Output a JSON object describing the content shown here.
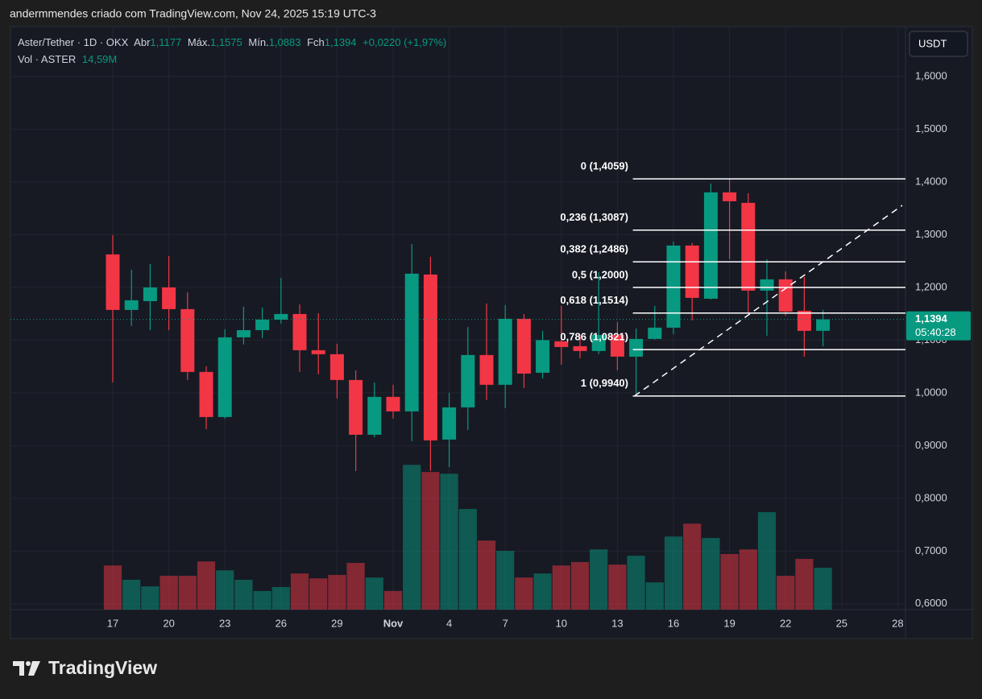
{
  "chart_data": {
    "type": "candlestick",
    "attribution": "andermmendes criado com TradingView.com, Nov 24, 2025 15:19 UTC-3",
    "brand": "TradingView",
    "currency": "USDT",
    "legend_header": {
      "title": "Aster/Tether · 1D · OKX",
      "open_label": "Abr",
      "open": "1,1177",
      "high_label": "Máx.",
      "high": "1,1575",
      "low_label": "Mín.",
      "low": "1,0883",
      "close_label": "Fch",
      "close": "1,1394",
      "change": "+0,0220 (+1,97%)",
      "volume_label": "Vol · ASTER",
      "volume": "14,59M"
    },
    "categories": [
      "17",
      null,
      null,
      "20",
      null,
      null,
      "23",
      null,
      null,
      "26",
      null,
      null,
      "29",
      null,
      null,
      "Nov",
      null,
      null,
      "4",
      null,
      null,
      "7",
      null,
      null,
      "10",
      null,
      null,
      "13",
      null,
      null,
      "16",
      null,
      null,
      "19",
      null,
      null,
      "22",
      null,
      null,
      "25",
      null,
      null,
      "28"
    ],
    "open": [
      1.2626,
      1.1573,
      1.174,
      1.2,
      1.1588,
      1.0397,
      0.9542,
      1.1053,
      1.119,
      1.1389,
      1.1496,
      1.0809,
      1.0733,
      1.0244,
      0.9206,
      0.9924,
      0.9649,
      1.2244,
      0.9115,
      0.9725,
      1.0718,
      1.0153,
      1.1405,
      1.0382,
      1.0977,
      1.0885,
      1.0794,
      1.1099,
      1.0687,
      1.1023,
      1.1237,
      1.2794,
      1.1786,
      1.3802,
      1.3603,
      1.1939,
      1.2153,
      1.1557,
      1.1177,
      null,
      null,
      null,
      null
    ],
    "high": [
      1.2992,
      1.2336,
      1.2443,
      1.2595,
      1.1908,
      1.0504,
      1.1206,
      1.1634,
      1.1618,
      1.2183,
      1.1679,
      1.1511,
      1.0931,
      1.0427,
      1.0198,
      1.0153,
      1.2824,
      1.258,
      1.0,
      1.1252,
      1.1695,
      1.1664,
      1.1496,
      1.1176,
      1.1649,
      1.1099,
      1.229,
      1.1344,
      1.1221,
      1.1649,
      1.287,
      1.284,
      1.3969,
      1.4059,
      1.3786,
      1.2534,
      1.2305,
      1.2198,
      1.1575,
      null,
      null,
      null,
      null
    ],
    "low": [
      1.0198,
      1.1267,
      1.119,
      1.119,
      1.0244,
      0.9313,
      0.9511,
      1.0916,
      1.1038,
      1.1313,
      1.0397,
      1.0351,
      0.9893,
      0.8519,
      0.916,
      0.9511,
      0.9084,
      0.8519,
      0.8595,
      0.9298,
      0.9863,
      0.971,
      1.0092,
      1.0275,
      1.0534,
      1.0656,
      1.0733,
      1.0427,
      0.994,
      1.1008,
      1.1115,
      1.1374,
      1.1771,
      1.2534,
      1.1496,
      1.1084,
      1.1466,
      1.0687,
      1.0883,
      null,
      null,
      null,
      null
    ],
    "close": [
      1.1573,
      1.1756,
      1.2,
      1.1588,
      1.0397,
      0.9542,
      1.1053,
      1.119,
      1.1389,
      1.1496,
      1.0809,
      1.0733,
      1.0244,
      0.9206,
      0.9924,
      0.9649,
      1.226,
      0.9099,
      0.9725,
      1.0718,
      1.0153,
      1.1405,
      1.0366,
      1.1,
      1.087,
      1.0794,
      1.1099,
      1.0687,
      1.1023,
      1.1237,
      1.2794,
      1.1802,
      1.3802,
      1.3634,
      1.1939,
      1.2153,
      1.1542,
      1.1176,
      1.1394,
      null,
      null,
      null,
      null
    ],
    "volume": [
      15.4,
      10.4,
      8.1,
      11.8,
      11.8,
      16.8,
      13.7,
      10.4,
      6.5,
      7.9,
      12.6,
      10.9,
      12.1,
      16.3,
      11.2,
      6.5,
      50.5,
      48.0,
      47.4,
      35.1,
      24.1,
      20.5,
      11.2,
      12.6,
      15.4,
      16.6,
      21.0,
      15.7,
      18.8,
      9.5,
      25.5,
      30.0,
      25.0,
      19.4,
      21.0,
      34.0,
      11.8,
      17.7,
      14.59,
      null,
      null,
      null,
      null
    ],
    "up_color": "#089981",
    "down_color": "#f23645",
    "ylim": [
      0.589,
      1.687
    ],
    "volume_lim": [
      0,
      202
    ],
    "yticks": [
      {
        "value": 0.6,
        "label": "0,6000"
      },
      {
        "value": 0.7,
        "label": "0,7000"
      },
      {
        "value": 0.8,
        "label": "0,8000"
      },
      {
        "value": 0.9,
        "label": "0,9000"
      },
      {
        "value": 1.0,
        "label": "1,0000"
      },
      {
        "value": 1.1,
        "label": "1,1000"
      },
      {
        "value": 1.2,
        "label": "1,2000"
      },
      {
        "value": 1.3,
        "label": "1,3000"
      },
      {
        "value": 1.4,
        "label": "1,4000"
      },
      {
        "value": 1.5,
        "label": "1,5000"
      },
      {
        "value": 1.6,
        "label": "1,6000"
      }
    ],
    "grid": true,
    "last_price": {
      "value": 1.1394,
      "label": "1,1394",
      "countdown": "05:40:28"
    },
    "fibonacci": {
      "start_index": 28,
      "levels": [
        {
          "label": "0 (1,4059)",
          "price": 1.4059
        },
        {
          "label": "0,236 (1,3087)",
          "price": 1.3087
        },
        {
          "label": "0,382 (1,2486)",
          "price": 1.2486
        },
        {
          "label": "0,5 (1,2000)",
          "price": 1.2
        },
        {
          "label": "0,618 (1,1514)",
          "price": 1.1514
        },
        {
          "label": "0,786 (1,0821)",
          "price": 1.0821
        },
        {
          "label": "1 (0,9940)",
          "price": 0.994
        }
      ]
    }
  }
}
